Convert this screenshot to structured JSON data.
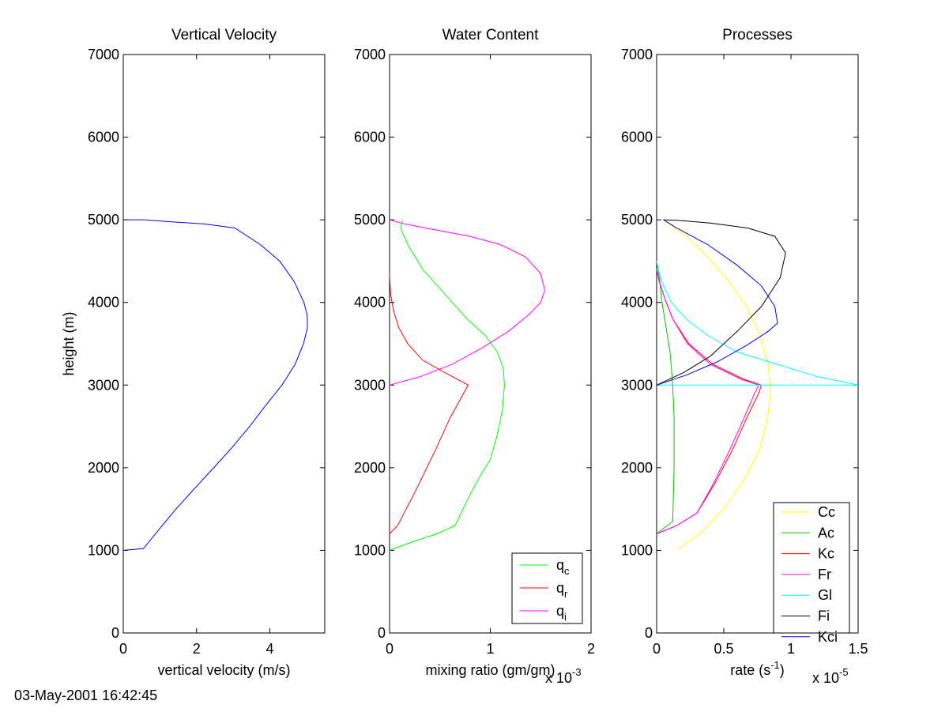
{
  "timestamp": "03-May-2001 16:42:45",
  "chart_data": [
    {
      "type": "line",
      "title": "Vertical Velocity",
      "xlabel": "vertical velocity (m/s)",
      "ylabel": "height (m)",
      "xlim": [
        0,
        5.5
      ],
      "ylim": [
        0,
        7000
      ],
      "xticks": [
        0,
        2,
        4
      ],
      "xtick_labels": [
        "0",
        "2",
        "4"
      ],
      "yticks": [
        0,
        1000,
        2000,
        3000,
        4000,
        5000,
        6000,
        7000
      ],
      "ytick_labels": [
        "0",
        "1000",
        "2000",
        "3000",
        "4000",
        "5000",
        "6000",
        "7000"
      ],
      "grid": false,
      "series": [
        {
          "color": "#0000ff",
          "x": [
            0,
            0.55,
            0.97,
            1.44,
            1.95,
            2.47,
            2.98,
            3.45,
            3.88,
            4.33,
            4.69,
            4.92,
            5.03,
            5.02,
            4.93,
            4.67,
            4.27,
            3.74,
            3.05,
            2.22,
            1.32,
            0.55,
            0
          ],
          "y": [
            1000,
            1020,
            1250,
            1500,
            1750,
            2000,
            2250,
            2500,
            2750,
            3000,
            3250,
            3500,
            3700,
            3850,
            4000,
            4250,
            4500,
            4700,
            4900,
            4950,
            4975,
            5000,
            5000
          ]
        }
      ]
    },
    {
      "type": "line",
      "title": "Water Content",
      "xlabel": "mixing ratio (gm/gm)",
      "xscale_label": "x 10",
      "xscale_exp": "-3",
      "ylabel": "",
      "xlim": [
        0,
        2
      ],
      "ylim": [
        0,
        7000
      ],
      "xticks": [
        0,
        1,
        2
      ],
      "xtick_labels": [
        "0",
        "1",
        "2"
      ],
      "yticks": [
        0,
        1000,
        2000,
        3000,
        4000,
        5000,
        6000,
        7000
      ],
      "ytick_labels": [
        "0",
        "1000",
        "2000",
        "3000",
        "4000",
        "5000",
        "6000",
        "7000"
      ],
      "grid": false,
      "legend_position": "bottom-right",
      "series": [
        {
          "name": "q",
          "sub": "c",
          "color": "#00ff00",
          "x": [
            0,
            0.22,
            0.47,
            0.65,
            0.73,
            0.81,
            0.9,
            1.0,
            1.07,
            1.12,
            1.14,
            1.13,
            1.07,
            0.95,
            0.77,
            0.55,
            0.33,
            0.18,
            0.11,
            0.13
          ],
          "y": [
            1000,
            1100,
            1200,
            1300,
            1500,
            1700,
            1900,
            2100,
            2400,
            2700,
            3000,
            3200,
            3400,
            3600,
            3800,
            4100,
            4400,
            4700,
            4900,
            5000
          ]
        },
        {
          "name": "q",
          "sub": "r",
          "color": "#ff0000",
          "x": [
            0,
            0.08,
            0.25,
            0.45,
            0.6,
            0.78,
            0.55,
            0.33,
            0.18,
            0.09,
            0.04,
            0.01,
            0
          ],
          "y": [
            1200,
            1300,
            1700,
            2200,
            2600,
            3000,
            3150,
            3300,
            3500,
            3700,
            3900,
            4100,
            4350
          ]
        },
        {
          "name": "q",
          "sub": "i",
          "color": "#ff00ff",
          "x": [
            0,
            0.3,
            0.62,
            0.92,
            1.18,
            1.38,
            1.5,
            1.54,
            1.5,
            1.35,
            1.1,
            0.8,
            0.45,
            0.15,
            0
          ],
          "y": [
            3000,
            3100,
            3250,
            3450,
            3650,
            3850,
            4000,
            4150,
            4350,
            4550,
            4700,
            4800,
            4880,
            4950,
            5000
          ]
        }
      ]
    },
    {
      "type": "line",
      "title": "Processes",
      "xlabel": "rate (s",
      "xlabel_sup": "-1",
      "xlabel_end": ")",
      "xscale_label": "x 10",
      "xscale_exp": "-5",
      "ylabel": "",
      "xlim": [
        0,
        1.5
      ],
      "ylim": [
        0,
        7000
      ],
      "xticks": [
        0,
        0.5,
        1,
        1.5
      ],
      "xtick_labels": [
        "0",
        "0.5",
        "1",
        "1.5"
      ],
      "yticks": [
        0,
        1000,
        2000,
        3000,
        4000,
        5000,
        6000,
        7000
      ],
      "ytick_labels": [
        "0",
        "1000",
        "2000",
        "3000",
        "4000",
        "5000",
        "6000",
        "7000"
      ],
      "grid": false,
      "legend_position": "bottom-right",
      "series": [
        {
          "name": "Cc",
          "color": "#ffff00",
          "x": [
            0.15,
            0.32,
            0.5,
            0.65,
            0.76,
            0.82,
            0.85,
            0.83,
            0.77,
            0.67,
            0.54,
            0.38,
            0.22,
            0.05
          ],
          "y": [
            1000,
            1200,
            1500,
            1850,
            2200,
            2550,
            2900,
            3250,
            3600,
            3950,
            4250,
            4550,
            4800,
            5000
          ]
        },
        {
          "name": "Ac",
          "color": "#00c800",
          "x": [
            0,
            0.12,
            0.13,
            0.13,
            0.12,
            0.1,
            0.07,
            0.04,
            0.02,
            0
          ],
          "y": [
            1200,
            1350,
            2000,
            2600,
            3000,
            3400,
            3700,
            4000,
            4300,
            4500
          ]
        },
        {
          "name": "Kc",
          "color": "#ff0000",
          "x": [
            0,
            0.15,
            0.3,
            0.43,
            0.56,
            0.67,
            0.76,
            0.78,
            0.65,
            0.42,
            0.24,
            0.12,
            0.06,
            0.02,
            0
          ],
          "y": [
            1200,
            1300,
            1450,
            1800,
            2200,
            2600,
            2900,
            3000,
            3070,
            3250,
            3500,
            3800,
            4050,
            4250,
            4400
          ]
        },
        {
          "name": "Fr",
          "color": "#ff00ff",
          "x": [
            0,
            0.15,
            0.3,
            0.42,
            0.54,
            0.65,
            0.73,
            0.76,
            0.63,
            0.4,
            0.23,
            0.12,
            0.06,
            0.02,
            0
          ],
          "y": [
            1200,
            1300,
            1450,
            1800,
            2200,
            2600,
            2900,
            3000,
            3070,
            3250,
            3500,
            3800,
            4050,
            4250,
            4400
          ]
        },
        {
          "name": "Gl",
          "color": "#00ffff",
          "x": [
            0,
            1.5,
            1.5,
            1.2,
            0.9,
            0.6,
            0.38,
            0.22,
            0.11,
            0.05,
            0.02,
            0
          ],
          "y": [
            3000,
            3000,
            3000,
            3100,
            3250,
            3400,
            3600,
            3800,
            4000,
            4200,
            4350,
            4500
          ]
        },
        {
          "name": "Fi",
          "color": "#000000",
          "x": [
            0,
            0.2,
            0.4,
            0.6,
            0.78,
            0.92,
            0.96,
            0.88,
            0.68,
            0.4,
            0.15,
            0.05
          ],
          "y": [
            3000,
            3150,
            3350,
            3650,
            3950,
            4300,
            4600,
            4800,
            4900,
            4960,
            4995,
            5000
          ]
        },
        {
          "name": "Kci",
          "color": "#0000ff",
          "x": [
            0,
            0.22,
            0.45,
            0.67,
            0.83,
            0.9,
            0.88,
            0.78,
            0.6,
            0.38,
            0.15,
            0.05
          ],
          "y": [
            3000,
            3120,
            3280,
            3480,
            3650,
            3750,
            3950,
            4200,
            4450,
            4700,
            4900,
            5000
          ]
        }
      ]
    }
  ]
}
